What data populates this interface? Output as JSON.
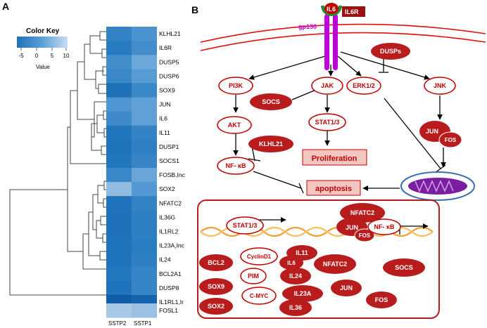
{
  "panel_a": {
    "label": "A",
    "color_key": {
      "title": "Color Key",
      "ticks": [
        "-5",
        "0",
        "5",
        "10"
      ],
      "axis_label": "Value"
    },
    "columns": [
      "SSTP2",
      "SSTP1"
    ],
    "rows": [
      {
        "gene": "KLHL21",
        "values": [
          0.18,
          0.3
        ]
      },
      {
        "gene": "IL6R",
        "values": [
          0.12,
          0.26
        ]
      },
      {
        "gene": "DUSP5",
        "values": [
          0.26,
          0.46
        ]
      },
      {
        "gene": "DUSP6",
        "values": [
          0.22,
          0.36
        ]
      },
      {
        "gene": "SOX9",
        "values": [
          0.02,
          0.22
        ]
      },
      {
        "gene": "JUN",
        "values": [
          0.32,
          0.4
        ]
      },
      {
        "gene": "IL6",
        "values": [
          0.24,
          0.4
        ]
      },
      {
        "gene": "IL11",
        "values": [
          0.08,
          0.18
        ]
      },
      {
        "gene": "DUSP1",
        "values": [
          0.06,
          0.16
        ]
      },
      {
        "gene": "SOCS1",
        "values": [
          0.08,
          0.2
        ]
      },
      {
        "gene": "FOSB,Inc",
        "values": [
          0.22,
          0.44
        ]
      },
      {
        "gene": "SOX2",
        "values": [
          0.62,
          0.34
        ]
      },
      {
        "gene": "NFATC2",
        "values": [
          0.06,
          0.18
        ]
      },
      {
        "gene": "IL36G",
        "values": [
          0.04,
          0.16
        ]
      },
      {
        "gene": "IL1RL2",
        "values": [
          0.04,
          0.16
        ]
      },
      {
        "gene": "IL23A,Inc",
        "values": [
          0.06,
          0.14
        ]
      },
      {
        "gene": "IL24",
        "values": [
          0.06,
          0.16
        ]
      },
      {
        "gene": "BCL2A1",
        "values": [
          0.1,
          0.2
        ]
      },
      {
        "gene": "DUSP8",
        "values": [
          0.06,
          0.2
        ]
      },
      {
        "gene": "IL1RL1,Ir",
        "values": [
          -0.18,
          -0.1
        ]
      },
      {
        "gene": "FOSL1",
        "values": [
          0.72,
          0.66
        ]
      }
    ]
  },
  "panel_b": {
    "label": "B",
    "receptor": {
      "ligand": "IL6",
      "receptor": "IL6R",
      "chain": "gp130"
    },
    "nodes": {
      "dusps": "DUSPs",
      "pi3k": "PI3K",
      "jak": "JAK",
      "erk": "ERK1/2",
      "jnk": "JNK",
      "socs": "SOCS",
      "akt": "AKT",
      "stat": "STAT1/3",
      "klhl21": "KLHL21",
      "nfkb": "NF- κB",
      "jun": "JUN",
      "fos": "FOS"
    },
    "outcomes": {
      "proliferation": "Proliferation",
      "apoptosis": "apoptosis"
    },
    "nucleus": {
      "tf": {
        "stat": "STAT1/3",
        "nfatc2": "NFATC2",
        "jun": "JUN",
        "fos": "FOS",
        "nfkb": "NF- κB"
      },
      "genes": {
        "bcl2": "BCL2",
        "cyclind": "CyclinD1",
        "il11": "IL11",
        "il6": "IL6",
        "nfatc2": "NFATC2",
        "socs": "SOCS",
        "pim": "PIM",
        "il24": "IL24",
        "sox9": "SOX9",
        "il23a": "IL23A",
        "jun": "JUN",
        "cmyc": "C-MYC",
        "sox2": "SOX2",
        "il36": "IL36",
        "fos": "FOS"
      }
    },
    "colors": {
      "red": "#c00000",
      "dark_red": "#b81c1c",
      "purple": "#b800e6",
      "pink_box": "#f4c6c2",
      "green": "#2a8a3a"
    }
  }
}
